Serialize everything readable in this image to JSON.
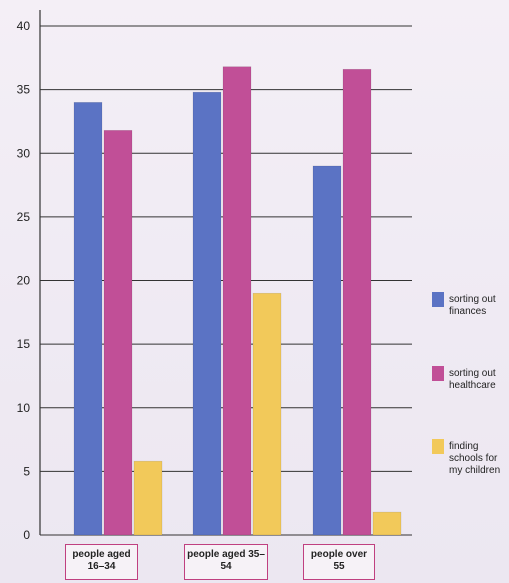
{
  "chart_data": {
    "type": "bar",
    "categories": [
      "people aged 16–34",
      "people aged 35–54",
      "people over 55"
    ],
    "series": [
      {
        "name": "sorting out finances",
        "values": [
          34,
          34.8,
          29
        ],
        "color": "#5b73c4"
      },
      {
        "name": "sorting out healthcare",
        "values": [
          31.8,
          36.8,
          36.6
        ],
        "color": "#c14f97"
      },
      {
        "name": "finding schools for my children",
        "values": [
          5.8,
          19,
          1.8
        ],
        "color": "#f2c95a"
      }
    ],
    "ylim": [
      0,
      40
    ],
    "yticks": [
      0,
      5,
      10,
      15,
      20,
      25,
      30,
      35,
      40
    ],
    "grid": true,
    "legend_position": "right"
  }
}
